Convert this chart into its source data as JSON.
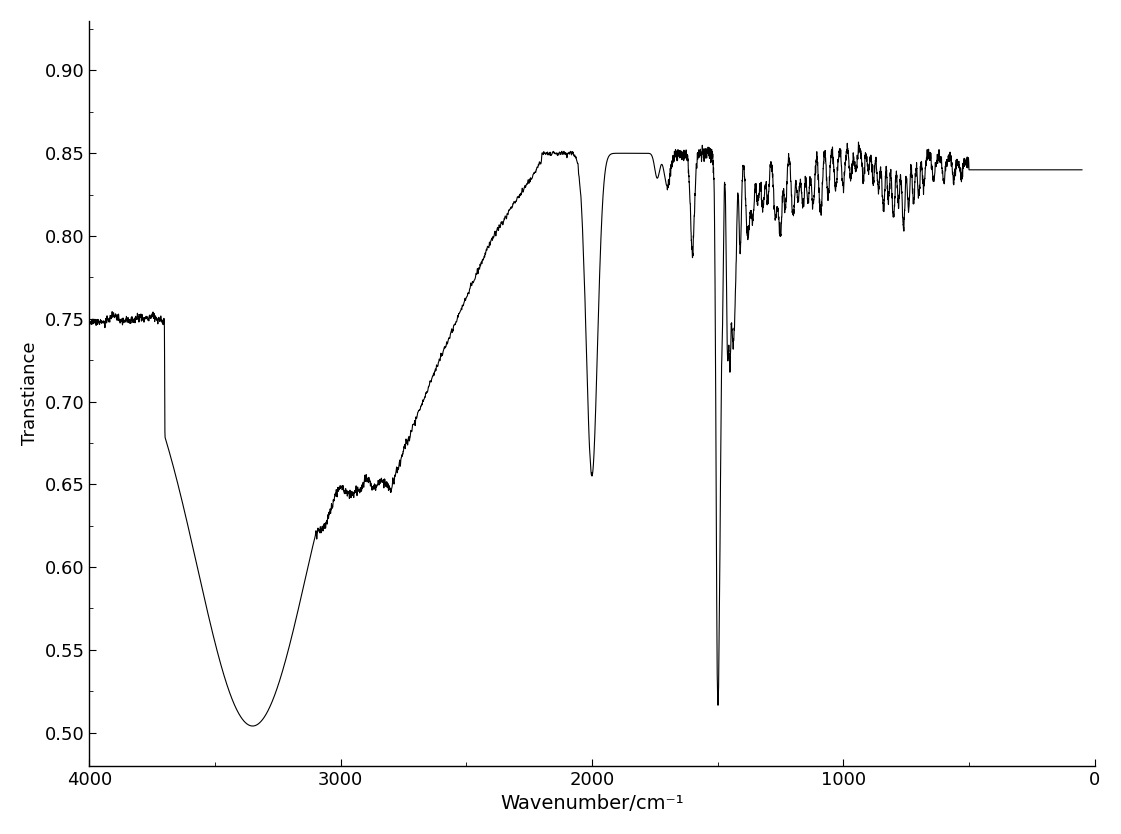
{
  "title": "",
  "xlabel": "Wavenumber/cm⁻¹",
  "ylabel": "Transtiance",
  "xlim": [
    4000,
    0
  ],
  "ylim": [
    0.48,
    0.93
  ],
  "xticks": [
    4000,
    3000,
    2000,
    1000,
    0
  ],
  "yticks": [
    0.5,
    0.55,
    0.6,
    0.65,
    0.7,
    0.75,
    0.8,
    0.85,
    0.9
  ],
  "line_color": "#000000",
  "line_width": 0.8,
  "background_color": "#ffffff",
  "xlabel_fontsize": 14,
  "ylabel_fontsize": 13,
  "tick_fontsize": 13
}
